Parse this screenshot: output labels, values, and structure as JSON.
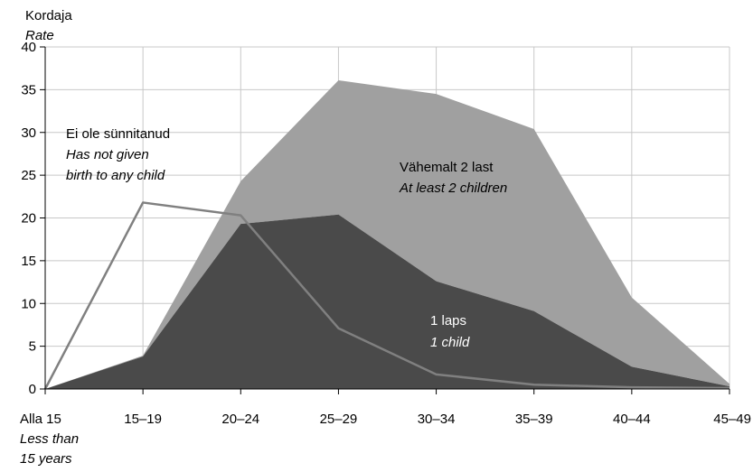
{
  "chart_data": {
    "type": "area",
    "ylabel": "Kordaja",
    "ylabel_en": "Rate",
    "ylim": [
      0,
      40
    ],
    "yticks": [
      0,
      5,
      10,
      15,
      20,
      25,
      30,
      35,
      40
    ],
    "grid": true,
    "categories": [
      "Alla 15",
      "15–19",
      "20–24",
      "25–29",
      "30–34",
      "35–39",
      "40–44",
      "45–49"
    ],
    "first_category_en": [
      "Less than",
      "15 years"
    ],
    "series": [
      {
        "name": "1 laps",
        "name_en": "1 child",
        "kind": "area",
        "color": "#4a4a4a",
        "values": [
          0,
          3.8,
          19.3,
          20.4,
          12.6,
          9.1,
          2.6,
          0.3
        ]
      },
      {
        "name": "Vähemalt 2 last",
        "name_en": "At least 2 children",
        "kind": "stacked-area",
        "color": "#a0a0a0",
        "values": [
          0,
          0.1,
          5.0,
          15.7,
          21.9,
          21.3,
          8.1,
          0.3
        ]
      },
      {
        "name": "Ei ole sünnitanud",
        "name_en_lines": [
          "Has not given",
          "birth to any child"
        ],
        "kind": "line",
        "color": "#808080",
        "values": [
          0,
          21.8,
          20.3,
          7.1,
          1.7,
          0.5,
          0.2,
          0.1
        ]
      }
    ]
  }
}
